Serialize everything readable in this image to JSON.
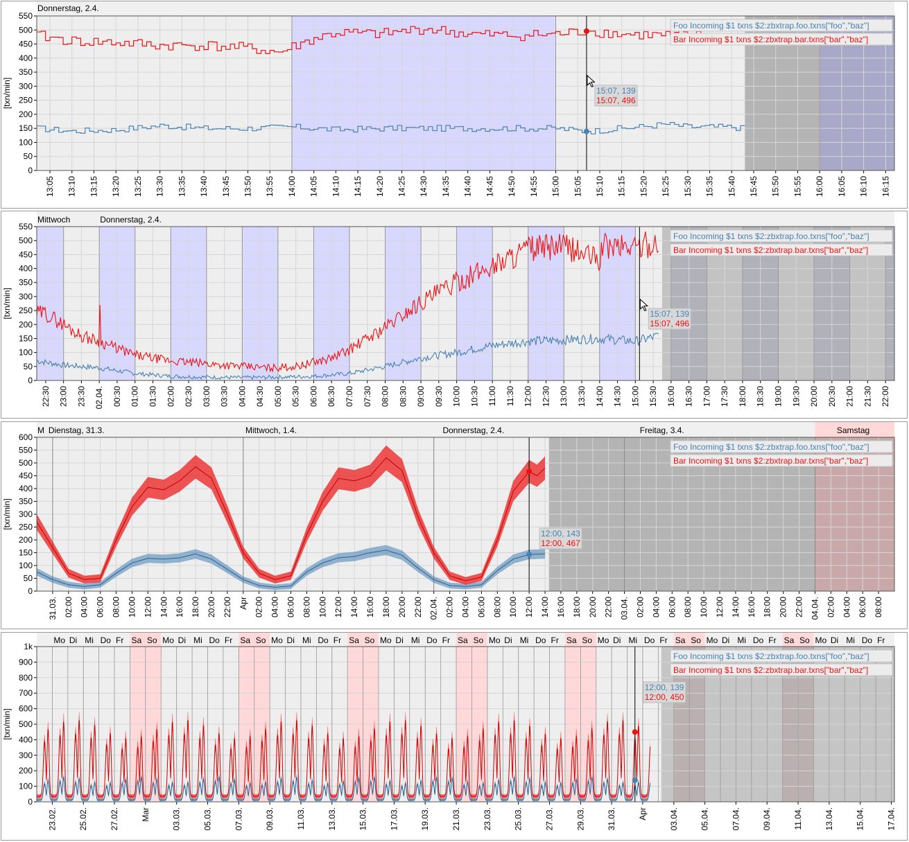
{
  "panels": [
    {
      "id": "p1",
      "y_label": "[txn/min]",
      "day_labels": [
        {
          "text": "Donnerstag, 2.4.",
          "t": 0
        }
      ],
      "x_tick_labels": [
        "13:05",
        "13:10",
        "13:15",
        "13:20",
        "13:25",
        "13:30",
        "13:35",
        "13:40",
        "13:45",
        "13:50",
        "13:55",
        "14:00",
        "14:05",
        "14:10",
        "14:15",
        "14:20",
        "14:25",
        "14:30",
        "14:35",
        "14:40",
        "14:45",
        "14:50",
        "14:55",
        "15:00",
        "15:05",
        "15:10",
        "15:15",
        "15:20",
        "15:25",
        "15:30",
        "15:35",
        "15:40",
        "15:45",
        "15:50",
        "15:55",
        "16:00",
        "16:05",
        "16:10",
        "16:15"
      ],
      "legend": [
        "Foo Incoming $1 txns $2:zbxtrap.foo.txns[\"foo\",\"baz\"]",
        "Bar Incoming $1 txns $2:zbxtrap.bar.txns[\"bar\",\"baz\"]"
      ],
      "tooltip": [
        "15:07, 139",
        "15:07, 496"
      ]
    },
    {
      "id": "p2",
      "y_label": "[txn/min]",
      "day_labels": [
        {
          "text": "Mittwoch",
          "t": 0
        },
        {
          "text": "Donnerstag, 2.4.",
          "t": 0.0845
        }
      ],
      "x_tick_labels": [
        "22:30",
        "23:00",
        "23:30",
        "02.04.",
        "00:30",
        "01:00",
        "01:30",
        "02:00",
        "02:30",
        "03:00",
        "03:30",
        "04:00",
        "04:30",
        "05:00",
        "05:30",
        "06:00",
        "06:30",
        "07:00",
        "07:30",
        "08:00",
        "08:30",
        "09:00",
        "09:30",
        "10:00",
        "10:30",
        "11:00",
        "11:30",
        "12:00",
        "12:30",
        "13:00",
        "13:30",
        "14:00",
        "14:30",
        "15:00",
        "15:30",
        "16:00",
        "16:30",
        "17:00",
        "17:30",
        "18:00",
        "18:30",
        "19:00",
        "19:30",
        "20:00",
        "20:30",
        "21:00",
        "21:30",
        "22:00"
      ],
      "legend": [
        "Foo Incoming $1 txns $2:zbxtrap.foo.txns[\"foo\",\"baz\"]",
        "Bar Incoming $1 txns $2:zbxtrap.bar.txns[\"bar\",\"baz\"]"
      ],
      "tooltip": [
        "15:07, 139",
        "15:07, 496"
      ]
    },
    {
      "id": "p3",
      "y_label": "[txn/min]",
      "day_labels": [
        {
          "text": "M",
          "t": 0
        },
        {
          "text": "Dienstag, 31.3.",
          "t": 0.0128
        },
        {
          "text": "Mittwoch, 1.4.",
          "t": 0.2425
        },
        {
          "text": "Donnerstag, 2.4.",
          "t": 0.4725
        },
        {
          "text": "Freitag, 3.4.",
          "t": 0.7023
        },
        {
          "text": "Samstag",
          "t": 0.932
        }
      ],
      "x_tick_labels": [
        "31.03.",
        "02:00",
        "04:00",
        "06:00",
        "08:00",
        "10:00",
        "12:00",
        "14:00",
        "16:00",
        "18:00",
        "20:00",
        "22:00",
        "Apr",
        "02:00",
        "04:00",
        "06:00",
        "08:00",
        "10:00",
        "12:00",
        "14:00",
        "16:00",
        "18:00",
        "20:00",
        "22:00",
        "02.04.",
        "02:00",
        "04:00",
        "06:00",
        "08:00",
        "10:00",
        "12:00",
        "14:00",
        "16:00",
        "18:00",
        "20:00",
        "22:00",
        "03.04.",
        "02:00",
        "04:00",
        "06:00",
        "08:00",
        "10:00",
        "12:00",
        "14:00",
        "16:00",
        "18:00",
        "20:00",
        "22:00",
        "04.04.",
        "02:00",
        "04:00",
        "06:00",
        "08:00"
      ],
      "legend": [
        "Foo Incoming $1 txns $2:zbxtrap.foo.txns[\"foo\",\"baz\"]",
        "Bar Incoming $1 txns $2:zbxtrap.bar.txns[\"bar\",\"baz\"]"
      ],
      "tooltip": [
        "12:00, 143",
        "12:00, 467"
      ]
    },
    {
      "id": "p4",
      "y_label": "[txn/min]",
      "weekday_labels": [
        "Mo",
        "Di",
        "Mi",
        "Do",
        "Fr",
        "Sa",
        "So",
        "Mo",
        "Di",
        "Mi",
        "Do",
        "Fr",
        "Sa",
        "So",
        "Mo",
        "Di",
        "Mi",
        "Do",
        "Fr",
        "Sa",
        "So",
        "Mo",
        "Di",
        "Mi",
        "Do",
        "Fr",
        "Sa",
        "So",
        "Mo",
        "Di",
        "Mi",
        "Do",
        "Fr",
        "Sa",
        "So",
        "Mo",
        "Di",
        "Mi",
        "Do",
        "Fr",
        "Sa",
        "So",
        "Mo",
        "Di",
        "Mi",
        "Do",
        "Fr",
        "Sa",
        "So",
        "Mo",
        "Di",
        "Mi",
        "Do",
        "Fr"
      ],
      "x_tick_labels": [
        "23.02.",
        "25.02.",
        "27.02.",
        "Mar",
        "03.03.",
        "05.03.",
        "07.03.",
        "09.03.",
        "11.03.",
        "13.03.",
        "15.03.",
        "17.03.",
        "19.03.",
        "21.03.",
        "23.03.",
        "25.03.",
        "27.03.",
        "29.03.",
        "31.03.",
        "Apr",
        "03.04.",
        "05.04.",
        "07.04.",
        "09.04.",
        "11.04.",
        "13.04.",
        "15.04.",
        "17.04."
      ],
      "legend": [
        "Foo Incoming $1 txns $2:zbxtrap.foo.txns[\"foo\",\"baz\"]",
        "Bar Incoming $1 txns $2:zbxtrap.bar.txns[\"bar\",\"baz\"]"
      ],
      "tooltip": [
        "12:00, 139",
        "12:00, 450"
      ]
    }
  ],
  "colors": {
    "foo": "#4682b4",
    "bar": "#ee1111",
    "plot_bg": "#eeeeee",
    "grid": "#d6d6d6",
    "hour_band": "#d8d8ff",
    "weekend_band": "#ffd9d9",
    "future_shade": "#b4b4b4",
    "future_band": "#a8a8c8",
    "future_weekend": "#c8a8a8"
  },
  "chart_data": [
    {
      "type": "line",
      "title": "",
      "xlabel": "",
      "ylabel": "[txn/min]",
      "ylim": [
        0,
        550
      ],
      "y_ticks": [
        0,
        50,
        100,
        150,
        200,
        250,
        300,
        350,
        400,
        450,
        500,
        550
      ],
      "x_range": [
        "13:02",
        "16:17"
      ],
      "series": [
        {
          "name": "Foo Incoming $1 txns $2:zbxtrap.foo.txns[\"foo\",\"baz\"]",
          "x": [
            "13:02",
            "13:10",
            "13:20",
            "13:30",
            "13:40",
            "13:50",
            "14:00",
            "14:10",
            "14:20",
            "14:30",
            "14:40",
            "14:50",
            "15:00",
            "15:07",
            "15:15",
            "15:25",
            "15:30",
            "15:40",
            "15:42"
          ],
          "values": [
            150,
            140,
            145,
            160,
            150,
            150,
            155,
            145,
            150,
            150,
            150,
            150,
            150,
            139,
            150,
            165,
            155,
            155,
            150
          ]
        },
        {
          "name": "Bar Incoming $1 txns $2:zbxtrap.bar.txns[\"bar\",\"baz\"]",
          "x": [
            "13:02",
            "13:10",
            "13:20",
            "13:30",
            "13:40",
            "13:50",
            "13:57",
            "14:00",
            "14:05",
            "14:10",
            "14:20",
            "14:30",
            "14:40",
            "14:50",
            "15:00",
            "15:07",
            "15:15",
            "15:25",
            "15:30",
            "15:40",
            "15:42"
          ],
          "values": [
            480,
            460,
            455,
            445,
            445,
            435,
            420,
            440,
            470,
            490,
            485,
            505,
            485,
            480,
            485,
            496,
            485,
            480,
            480,
            475,
            470
          ]
        }
      ]
    },
    {
      "type": "line",
      "title": "",
      "xlabel": "",
      "ylabel": "[txn/min]",
      "ylim": [
        0,
        550
      ],
      "y_ticks": [
        0,
        50,
        100,
        150,
        200,
        250,
        300,
        350,
        400,
        450,
        500,
        550
      ],
      "x_range": [
        "01.04. 22:15",
        "02.04. 22:15"
      ],
      "series": [
        {
          "name": "Foo Incoming $1 txns $2:zbxtrap.foo.txns[\"foo\",\"baz\"]",
          "x": [
            "22:15",
            "23:00",
            "00:00",
            "01:00",
            "02:00",
            "03:00",
            "04:00",
            "05:00",
            "06:00",
            "07:00",
            "08:00",
            "09:00",
            "10:00",
            "11:00",
            "12:00",
            "13:00",
            "14:00",
            "15:00",
            "15:40"
          ],
          "values": [
            70,
            55,
            45,
            25,
            15,
            12,
            10,
            12,
            15,
            25,
            50,
            80,
            100,
            125,
            140,
            145,
            150,
            140,
            160
          ]
        },
        {
          "name": "Bar Incoming $1 txns $2:zbxtrap.bar.txns[\"bar\",\"baz\"]",
          "x": [
            "22:15",
            "22:30",
            "23:00",
            "23:30",
            "00:00",
            "01:00",
            "02:00",
            "03:00",
            "04:00",
            "04:45",
            "05:30",
            "06:30",
            "07:00",
            "08:00",
            "09:00",
            "10:00",
            "11:00",
            "11:30",
            "12:00",
            "13:00",
            "14:00",
            "14:05",
            "15:00",
            "15:40"
          ],
          "values": [
            240,
            240,
            200,
            160,
            140,
            90,
            70,
            60,
            50,
            45,
            50,
            80,
            110,
            190,
            280,
            350,
            410,
            440,
            470,
            480,
            430,
            480,
            480,
            490
          ]
        }
      ]
    },
    {
      "type": "area",
      "title": "",
      "xlabel": "",
      "ylabel": "[txn/min]",
      "ylim": [
        0,
        600
      ],
      "y_ticks": [
        0,
        50,
        100,
        150,
        200,
        250,
        300,
        350,
        400,
        450,
        500,
        550,
        600
      ],
      "x_range": [
        "30.03. 22:00",
        "04.04. 10:00"
      ],
      "series": [
        {
          "name": "Foo Incoming $1 txns $2:zbxtrap.foo.txns[\"foo\",\"baz\"]",
          "x": [
            "30.03. 22:00",
            "31.03. 00:00",
            "31.03. 02:00",
            "31.03. 04:00",
            "31.03. 06:00",
            "31.03. 08:00",
            "31.03. 10:00",
            "31.03. 12:00",
            "31.03. 14:00",
            "31.03. 16:00",
            "31.03. 18:00",
            "31.03. 20:00",
            "31.03. 22:00",
            "01.04. 00:00",
            "01.04. 02:00",
            "01.04. 04:00",
            "01.04. 06:00",
            "01.04. 08:00",
            "01.04. 10:00",
            "01.04. 12:00",
            "01.04. 14:00",
            "01.04. 16:00",
            "01.04. 18:00",
            "01.04. 20:00",
            "01.04. 22:00",
            "02.04. 00:00",
            "02.04. 02:00",
            "02.04. 04:00",
            "02.04. 06:00",
            "02.04. 08:00",
            "02.04. 10:00",
            "02.04. 12:00",
            "02.04. 14:00"
          ],
          "values": [
            75,
            45,
            25,
            18,
            25,
            70,
            110,
            128,
            125,
            130,
            145,
            125,
            85,
            45,
            22,
            15,
            20,
            75,
            110,
            130,
            135,
            150,
            160,
            140,
            90,
            45,
            22,
            18,
            25,
            80,
            125,
            143,
            145
          ]
        },
        {
          "name": "Bar Incoming $1 txns $2:zbxtrap.bar.txns[\"bar\",\"baz\"]",
          "x": [
            "30.03. 22:00",
            "31.03. 00:00",
            "31.03. 02:00",
            "31.03. 04:00",
            "31.03. 06:00",
            "31.03. 08:00",
            "31.03. 10:00",
            "31.03. 12:00",
            "31.03. 14:00",
            "31.03. 16:00",
            "31.03. 18:00",
            "31.03. 20:00",
            "31.03. 22:00",
            "01.04. 00:00",
            "01.04. 02:00",
            "01.04. 04:00",
            "01.04. 06:00",
            "01.04. 08:00",
            "01.04. 10:00",
            "01.04. 12:00",
            "01.04. 14:00",
            "01.04. 16:00",
            "01.04. 18:00",
            "01.04. 20:00",
            "01.04. 22:00",
            "02.04. 00:00",
            "02.04. 02:00",
            "02.04. 04:00",
            "02.04. 06:00",
            "02.04. 08:00",
            "02.04. 10:00",
            "02.04. 12:00",
            "02.04. 13:00",
            "02.04. 14:00"
          ],
          "values": [
            270,
            170,
            70,
            45,
            50,
            200,
            330,
            405,
            395,
            430,
            485,
            440,
            300,
            150,
            70,
            45,
            60,
            220,
            350,
            440,
            430,
            450,
            520,
            470,
            290,
            150,
            60,
            40,
            55,
            200,
            390,
            467,
            450,
            480
          ]
        }
      ]
    },
    {
      "type": "area",
      "title": "",
      "xlabel": "",
      "ylabel": "[txn/min]",
      "ylim": [
        0,
        1000
      ],
      "y_ticks": [
        0,
        100,
        200,
        300,
        400,
        500,
        600,
        700,
        800,
        900,
        1000
      ],
      "y_tick_labels": [
        "0",
        "100",
        "200",
        "300",
        "400",
        "500",
        "600",
        "700",
        "800",
        "900",
        "1k"
      ],
      "x_range": [
        "22.02.",
        "18.04."
      ],
      "daily_pattern": "each day ~one peak; Bar ~450-550 at peak, ~40 overnight; Foo ~140-160 at peak, ~15 overnight; data ends 02.04.",
      "series": [
        {
          "name": "Foo Incoming $1 txns $2:zbxtrap.foo.txns[\"foo\",\"baz\"]",
          "x": [
            "22.02.",
            "02.04."
          ],
          "values": [
            150,
            139
          ]
        },
        {
          "name": "Bar Incoming $1 txns $2:zbxtrap.bar.txns[\"bar\",\"baz\"]",
          "x": [
            "22.02.",
            "02.04."
          ],
          "values": [
            480,
            450
          ]
        }
      ]
    }
  ]
}
